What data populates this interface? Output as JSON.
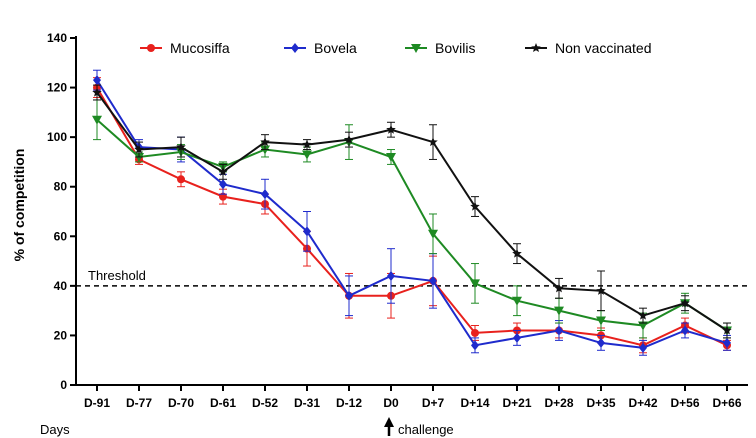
{
  "chart_data": {
    "type": "line",
    "title": "",
    "xlabel": "Days",
    "ylabel": "% of competition",
    "ylim": [
      0,
      140
    ],
    "yticks": [
      0,
      20,
      40,
      60,
      80,
      100,
      120,
      140
    ],
    "categories": [
      "D-91",
      "D-77",
      "D-70",
      "D-61",
      "D-52",
      "D-31",
      "D-12",
      "D0",
      "D+7",
      "D+14",
      "D+21",
      "D+28",
      "D+35",
      "D+42",
      "D+56",
      "D+66"
    ],
    "legend_position": "top",
    "grid": false,
    "threshold": {
      "label": "Threshold",
      "value": 40
    },
    "annotation": {
      "label": "challenge",
      "at": "D0"
    },
    "series": [
      {
        "name": "Mucosiffa",
        "color": "#e8211d",
        "marker": "circle",
        "values": [
          120,
          91,
          83,
          76,
          73,
          55,
          36,
          36,
          42,
          21,
          22,
          22,
          20,
          16,
          24,
          16
        ],
        "errors": [
          4,
          2,
          3,
          3,
          4,
          7,
          9,
          9,
          10,
          3,
          3,
          3,
          3,
          3,
          3,
          2
        ]
      },
      {
        "name": "Bovela",
        "color": "#1f2bcc",
        "marker": "diamond",
        "values": [
          123,
          96,
          95,
          81,
          77,
          62,
          36,
          44,
          42,
          16,
          19,
          22,
          17,
          15,
          22,
          17
        ],
        "errors": [
          4,
          3,
          5,
          4,
          6,
          8,
          8,
          11,
          11,
          3,
          3,
          4,
          3,
          3,
          3,
          3
        ]
      },
      {
        "name": "Bovilis",
        "color": "#1e8a23",
        "marker": "triangle-down",
        "values": [
          107,
          92,
          94,
          88,
          95,
          93,
          98,
          92,
          61,
          41,
          34,
          30,
          26,
          24,
          33,
          22
        ],
        "errors": [
          8,
          2,
          3,
          2,
          3,
          3,
          7,
          3,
          8,
          8,
          6,
          5,
          4,
          5,
          4,
          3
        ]
      },
      {
        "name": "Non vaccinated",
        "color": "#111111",
        "marker": "star",
        "values": [
          118,
          95,
          96,
          86,
          98,
          97,
          99,
          103,
          98,
          72,
          53,
          39,
          38,
          28,
          33,
          22
        ],
        "errors": [
          3,
          3,
          4,
          3,
          3,
          2,
          3,
          3,
          7,
          4,
          4,
          4,
          8,
          3,
          3,
          3
        ]
      }
    ]
  }
}
